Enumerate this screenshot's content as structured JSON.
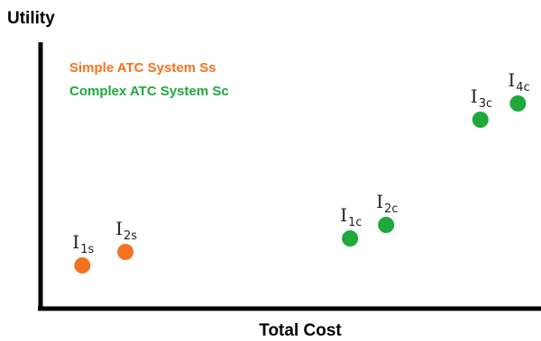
{
  "chart_data": {
    "type": "scatter",
    "xlabel": "Total Cost",
    "ylabel": "Utility",
    "grid": false,
    "legend_position": "top-left",
    "colors": {
      "simple": "#f4731f",
      "complex": "#1fa83c",
      "axis": "#000000"
    },
    "series": [
      {
        "name": "Simple ATC System Ss",
        "color": "#f4731f",
        "points": [
          {
            "label": "I",
            "sub": "1s",
            "x": 0.89,
            "y": 1.6
          },
          {
            "label": "I",
            "sub": "2s",
            "x": 1.81,
            "y": 2.1
          }
        ]
      },
      {
        "name": "Complex ATC System Sc",
        "color": "#1fa83c",
        "points": [
          {
            "label": "I",
            "sub": "1c",
            "x": 6.6,
            "y": 2.6
          },
          {
            "label": "I",
            "sub": "2c",
            "x": 7.37,
            "y": 3.1
          },
          {
            "label": "I",
            "sub": "3c",
            "x": 9.38,
            "y": 7.0
          },
          {
            "label": "I",
            "sub": "4c",
            "x": 10.18,
            "y": 7.6
          }
        ]
      }
    ]
  }
}
